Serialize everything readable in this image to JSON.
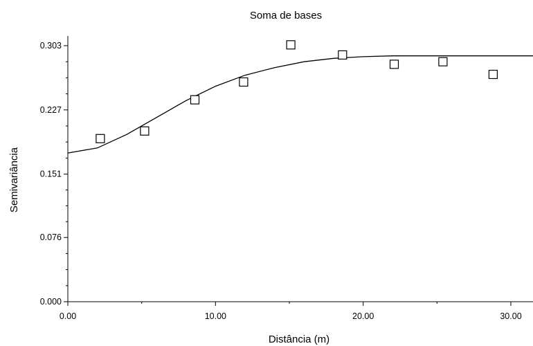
{
  "chart_data": {
    "type": "scatter",
    "title": "Soma de bases",
    "xlabel": "Distância (m)",
    "ylabel": "Semivariância",
    "xlim": [
      0,
      31.5
    ],
    "ylim": [
      0,
      0.303
    ],
    "x_ticks": [
      0,
      10,
      20,
      30
    ],
    "x_tick_labels": [
      "0.00",
      "10.00",
      "20.00",
      "30.00"
    ],
    "y_ticks": [
      0,
      0.076,
      0.151,
      0.227,
      0.303
    ],
    "y_tick_labels": [
      "0.000",
      "0.076",
      "0.151",
      "0.227",
      "0.303"
    ],
    "grid": false,
    "legend": "none",
    "series": [
      {
        "type": "scatter",
        "marker": "square",
        "x": [
          2.2,
          5.2,
          8.6,
          11.9,
          15.1,
          18.6,
          22.1,
          25.4,
          28.8
        ],
        "y": [
          0.193,
          0.202,
          0.239,
          0.26,
          0.304,
          0.292,
          0.281,
          0.284,
          0.269
        ]
      },
      {
        "type": "line",
        "model": "gaussian",
        "x": [
          0,
          2,
          4,
          6,
          8,
          10,
          12,
          14,
          16,
          18,
          20,
          22,
          24,
          26,
          28,
          30,
          31.5
        ],
        "y": [
          0.176,
          0.182,
          0.198,
          0.218,
          0.238,
          0.255,
          0.268,
          0.277,
          0.284,
          0.288,
          0.29,
          0.291,
          0.291,
          0.291,
          0.291,
          0.291,
          0.291
        ]
      }
    ],
    "colors": {
      "axis": "#000000",
      "marker_fill": "#ffffff",
      "marker_stroke": "#000000",
      "curve": "#000000"
    }
  }
}
